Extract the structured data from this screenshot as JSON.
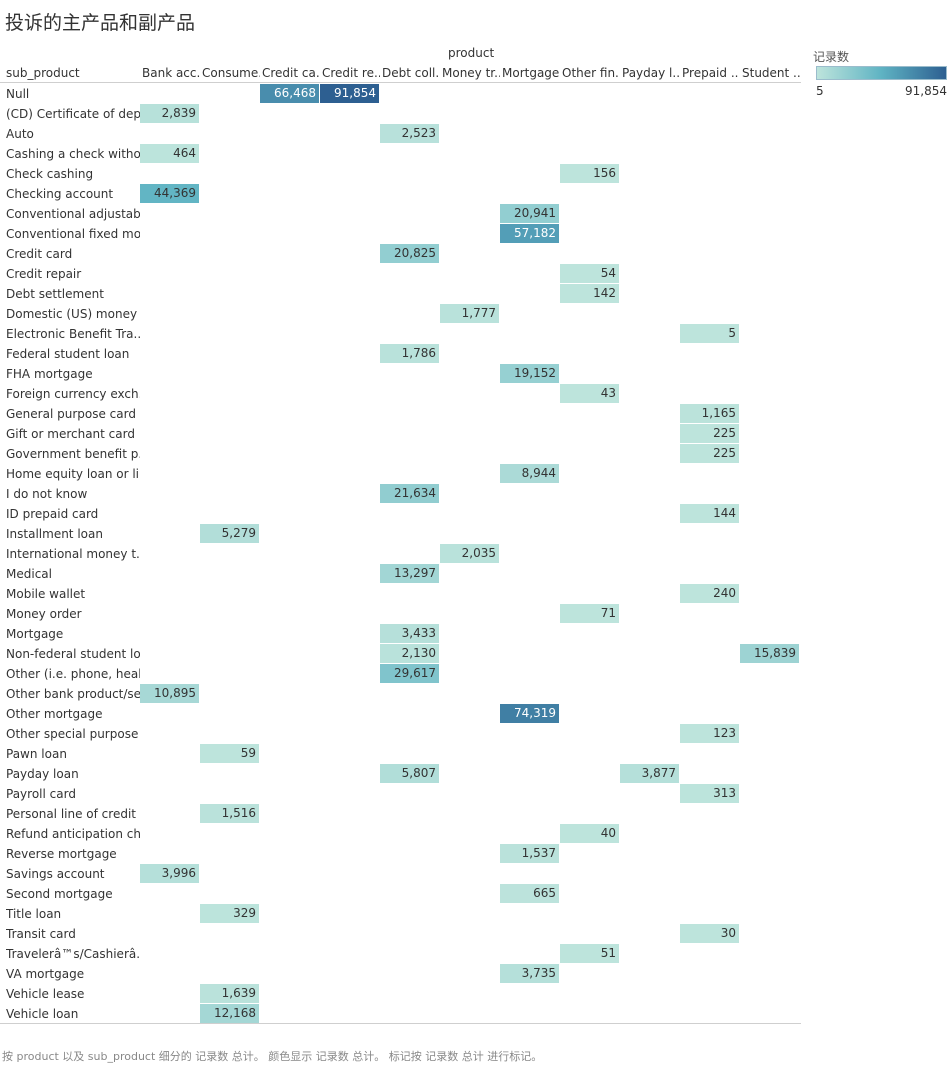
{
  "title": "投诉的主产品和副产品",
  "chart_data": {
    "type": "table",
    "column_group_label": "product",
    "row_header": "sub_product",
    "columns": [
      "Bank acc..",
      "Consume..",
      "Credit ca..",
      "Credit re..",
      "Debt coll..",
      "Money tr..",
      "Mortgage",
      "Other fin..",
      "Payday l..",
      "Prepaid ..",
      "Student .."
    ],
    "rows": [
      "Null",
      "(CD) Certificate of dep..",
      "Auto",
      "Cashing a check witho..",
      "Check cashing",
      "Checking account",
      "Conventional adjustab..",
      "Conventional fixed mo..",
      "Credit card",
      "Credit repair",
      "Debt settlement",
      "Domestic (US) money ..",
      "Electronic Benefit Tra..",
      "Federal student loan",
      "FHA mortgage",
      "Foreign currency exch..",
      "General purpose card",
      "Gift or merchant card",
      "Government benefit p..",
      "Home equity loan or li..",
      "I do not know",
      "ID prepaid card",
      "Installment loan",
      "International money t..",
      "Medical",
      "Mobile wallet",
      "Money order",
      "Mortgage",
      "Non-federal student lo..",
      "Other (i.e. phone, heal..",
      "Other bank product/se..",
      "Other mortgage",
      "Other special purpose ..",
      "Pawn loan",
      "Payday loan",
      "Payroll card",
      "Personal line of credit",
      "Refund anticipation ch..",
      "Reverse mortgage",
      "Savings account",
      "Second mortgage",
      "Title loan",
      "Transit card",
      "Travelerâ™s/Cashierâ..",
      "VA mortgage",
      "Vehicle lease",
      "Vehicle loan"
    ],
    "cells": [
      {
        "row": 0,
        "col": 2,
        "value": 66468,
        "label": "66,468"
      },
      {
        "row": 0,
        "col": 3,
        "value": 91854,
        "label": "91,854"
      },
      {
        "row": 1,
        "col": 0,
        "value": 2839,
        "label": "2,839"
      },
      {
        "row": 2,
        "col": 4,
        "value": 2523,
        "label": "2,523"
      },
      {
        "row": 3,
        "col": 0,
        "value": 464,
        "label": "464"
      },
      {
        "row": 4,
        "col": 7,
        "value": 156,
        "label": "156"
      },
      {
        "row": 5,
        "col": 0,
        "value": 44369,
        "label": "44,369"
      },
      {
        "row": 6,
        "col": 6,
        "value": 20941,
        "label": "20,941"
      },
      {
        "row": 7,
        "col": 6,
        "value": 57182,
        "label": "57,182"
      },
      {
        "row": 8,
        "col": 4,
        "value": 20825,
        "label": "20,825"
      },
      {
        "row": 9,
        "col": 7,
        "value": 54,
        "label": "54"
      },
      {
        "row": 10,
        "col": 7,
        "value": 142,
        "label": "142"
      },
      {
        "row": 11,
        "col": 5,
        "value": 1777,
        "label": "1,777"
      },
      {
        "row": 12,
        "col": 9,
        "value": 5,
        "label": "5"
      },
      {
        "row": 13,
        "col": 4,
        "value": 1786,
        "label": "1,786"
      },
      {
        "row": 14,
        "col": 6,
        "value": 19152,
        "label": "19,152"
      },
      {
        "row": 15,
        "col": 7,
        "value": 43,
        "label": "43"
      },
      {
        "row": 16,
        "col": 9,
        "value": 1165,
        "label": "1,165"
      },
      {
        "row": 17,
        "col": 9,
        "value": 225,
        "label": "225"
      },
      {
        "row": 18,
        "col": 9,
        "value": 225,
        "label": "225"
      },
      {
        "row": 19,
        "col": 6,
        "value": 8944,
        "label": "8,944"
      },
      {
        "row": 20,
        "col": 4,
        "value": 21634,
        "label": "21,634"
      },
      {
        "row": 21,
        "col": 9,
        "value": 144,
        "label": "144"
      },
      {
        "row": 22,
        "col": 1,
        "value": 5279,
        "label": "5,279"
      },
      {
        "row": 23,
        "col": 5,
        "value": 2035,
        "label": "2,035"
      },
      {
        "row": 24,
        "col": 4,
        "value": 13297,
        "label": "13,297"
      },
      {
        "row": 25,
        "col": 9,
        "value": 240,
        "label": "240"
      },
      {
        "row": 26,
        "col": 7,
        "value": 71,
        "label": "71"
      },
      {
        "row": 27,
        "col": 4,
        "value": 3433,
        "label": "3,433"
      },
      {
        "row": 28,
        "col": 4,
        "value": 2130,
        "label": "2,130"
      },
      {
        "row": 28,
        "col": 10,
        "value": 15839,
        "label": "15,839"
      },
      {
        "row": 29,
        "col": 4,
        "value": 29617,
        "label": "29,617"
      },
      {
        "row": 30,
        "col": 0,
        "value": 10895,
        "label": "10,895"
      },
      {
        "row": 31,
        "col": 6,
        "value": 74319,
        "label": "74,319"
      },
      {
        "row": 32,
        "col": 9,
        "value": 123,
        "label": "123"
      },
      {
        "row": 33,
        "col": 1,
        "value": 59,
        "label": "59"
      },
      {
        "row": 34,
        "col": 4,
        "value": 5807,
        "label": "5,807"
      },
      {
        "row": 34,
        "col": 8,
        "value": 3877,
        "label": "3,877"
      },
      {
        "row": 35,
        "col": 9,
        "value": 313,
        "label": "313"
      },
      {
        "row": 36,
        "col": 1,
        "value": 1516,
        "label": "1,516"
      },
      {
        "row": 37,
        "col": 7,
        "value": 40,
        "label": "40"
      },
      {
        "row": 38,
        "col": 6,
        "value": 1537,
        "label": "1,537"
      },
      {
        "row": 39,
        "col": 0,
        "value": 3996,
        "label": "3,996"
      },
      {
        "row": 40,
        "col": 6,
        "value": 665,
        "label": "665"
      },
      {
        "row": 41,
        "col": 1,
        "value": 329,
        "label": "329"
      },
      {
        "row": 42,
        "col": 9,
        "value": 30,
        "label": "30"
      },
      {
        "row": 43,
        "col": 7,
        "value": 51,
        "label": "51"
      },
      {
        "row": 44,
        "col": 6,
        "value": 3735,
        "label": "3,735"
      },
      {
        "row": 45,
        "col": 1,
        "value": 1639,
        "label": "1,639"
      },
      {
        "row": 46,
        "col": 1,
        "value": 12168,
        "label": "12,168"
      }
    ],
    "legend": {
      "title": "记录数",
      "min_label": "5",
      "max_label": "91,854",
      "min": 5,
      "max": 91854,
      "color_low": "#bde4dc",
      "color_mid": "#5fb3c3",
      "color_high": "#2d5f91"
    }
  },
  "footnote": "按 product 以及 sub_product 细分的 记录数 总计。 颜色显示 记录数 总计。 标记按 记录数 总计 进行标记。"
}
